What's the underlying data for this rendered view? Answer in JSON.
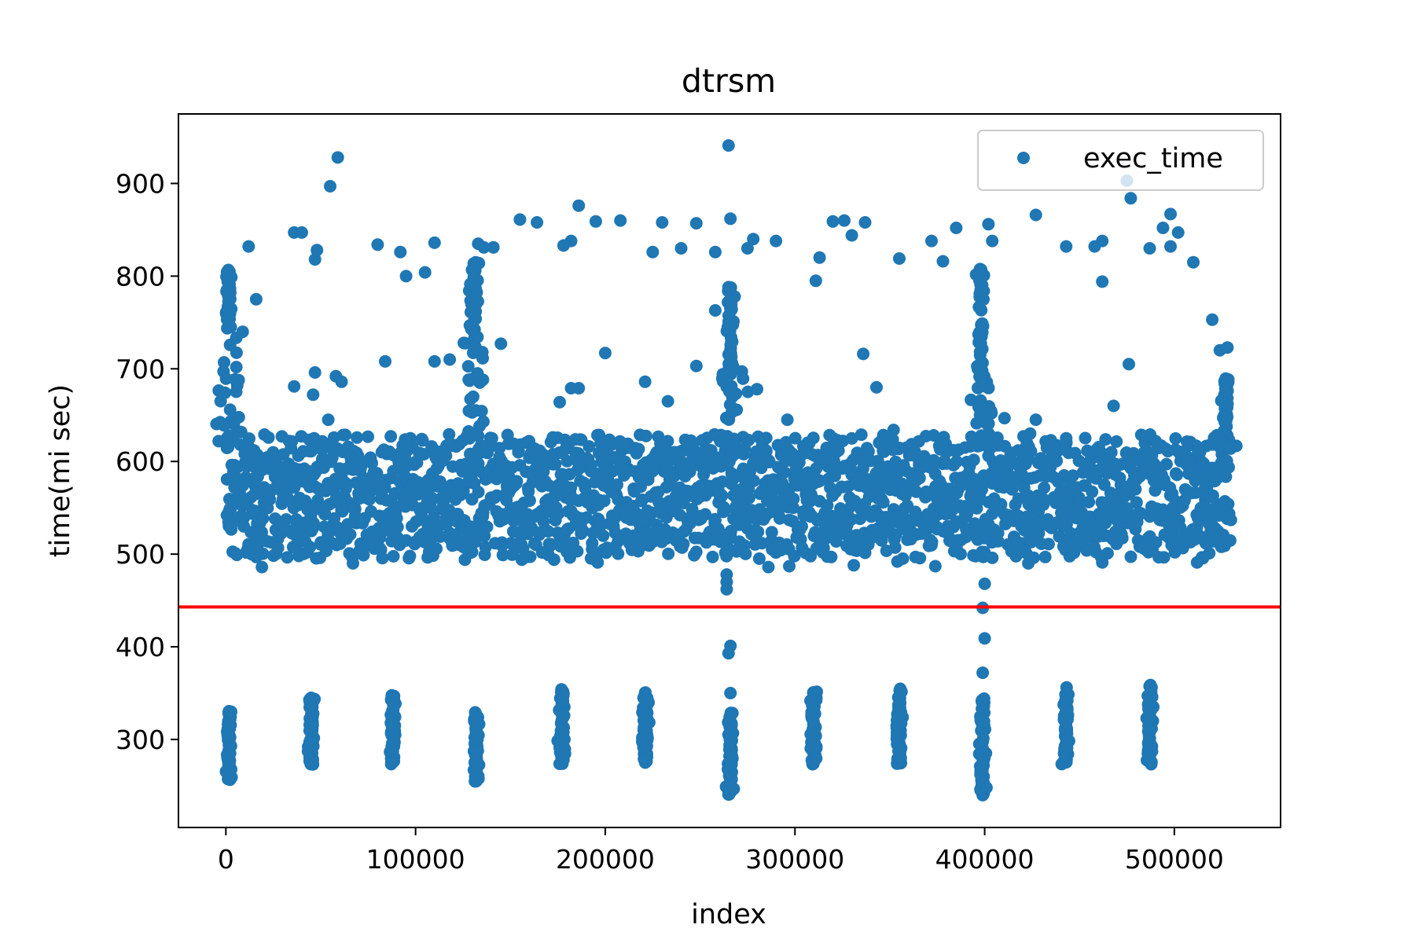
{
  "chart_data": {
    "type": "scatter",
    "title": "dtrsm",
    "xlabel": "index",
    "ylabel": "time(mi sec)",
    "xlim": [
      -25000,
      556000
    ],
    "ylim": [
      205,
      975
    ],
    "xticks": [
      0,
      100000,
      200000,
      300000,
      400000,
      500000
    ],
    "xtick_labels": [
      "0",
      "100000",
      "200000",
      "300000",
      "400000",
      "500000"
    ],
    "yticks": [
      300,
      400,
      500,
      600,
      700,
      800,
      900
    ],
    "ytick_labels": [
      "300",
      "400",
      "500",
      "600",
      "700",
      "800",
      "900"
    ],
    "grid": false,
    "legend": {
      "position": "top-right",
      "entries": [
        "exec_time"
      ]
    },
    "threshold_line": {
      "y": 443,
      "color": "#ff0000"
    },
    "series": [
      {
        "name": "exec_time",
        "color": "#1f77b4",
        "main_band": {
          "x_range": [
            0,
            530000
          ],
          "y_range": [
            495,
            630
          ],
          "typical_range": [
            510,
            615
          ]
        },
        "low_clusters": [
          {
            "x": 1500,
            "y_range": [
              255,
              332
            ]
          },
          {
            "x": 45000,
            "y_range": [
              273,
              345
            ]
          },
          {
            "x": 88000,
            "y_range": [
              273,
              348
            ]
          },
          {
            "x": 132000,
            "y_range": [
              253,
              330
            ]
          },
          {
            "x": 177000,
            "y_range": [
              273,
              355
            ]
          },
          {
            "x": 221000,
            "y_range": [
              273,
              352
            ]
          },
          {
            "x": 266000,
            "y_range": [
              238,
              330
            ]
          },
          {
            "x": 310000,
            "y_range": [
              273,
              355
            ]
          },
          {
            "x": 355000,
            "y_range": [
              273,
              355
            ]
          },
          {
            "x": 399000,
            "y_range": [
              238,
              345
            ]
          },
          {
            "x": 443000,
            "y_range": [
              273,
              358
            ]
          },
          {
            "x": 487000,
            "y_range": [
              273,
              360
            ]
          }
        ],
        "high_clusters": [
          {
            "x": 1500,
            "y_range": [
              740,
              808
            ]
          },
          {
            "x": 131000,
            "y_range": [
              730,
              815
            ]
          },
          {
            "x": 266000,
            "y_range": [
              700,
              790
            ]
          },
          {
            "x": 398000,
            "y_range": [
              690,
              810
            ]
          },
          {
            "x": 527000,
            "y_range": [
              620,
              690
            ]
          }
        ],
        "highlight_points": [
          [
            265000,
            941
          ],
          [
            59000,
            928
          ],
          [
            55000,
            897
          ],
          [
            475000,
            903
          ],
          [
            477000,
            884
          ],
          [
            186000,
            876
          ],
          [
            427000,
            866
          ],
          [
            498000,
            867
          ],
          [
            155000,
            861
          ],
          [
            164000,
            858
          ],
          [
            195000,
            859
          ],
          [
            208000,
            860
          ],
          [
            230000,
            858
          ],
          [
            248000,
            857
          ],
          [
            266000,
            862
          ],
          [
            320000,
            859
          ],
          [
            326000,
            860
          ],
          [
            337000,
            858
          ],
          [
            385000,
            852
          ],
          [
            402000,
            856
          ],
          [
            494000,
            852
          ],
          [
            502000,
            847
          ],
          [
            36000,
            847
          ],
          [
            40000,
            847
          ],
          [
            12000,
            832
          ],
          [
            80000,
            834
          ],
          [
            92000,
            826
          ],
          [
            110000,
            836
          ],
          [
            133000,
            835
          ],
          [
            136000,
            831
          ],
          [
            141000,
            831
          ],
          [
            178000,
            833
          ],
          [
            182000,
            838
          ],
          [
            225000,
            826
          ],
          [
            240000,
            830
          ],
          [
            258000,
            826
          ],
          [
            275000,
            830
          ],
          [
            278000,
            840
          ],
          [
            290000,
            838
          ],
          [
            330000,
            844
          ],
          [
            372000,
            838
          ],
          [
            404000,
            838
          ],
          [
            443000,
            832
          ],
          [
            458000,
            832
          ],
          [
            462000,
            838
          ],
          [
            487000,
            830
          ],
          [
            498000,
            832
          ],
          [
            47000,
            818
          ],
          [
            48000,
            828
          ],
          [
            95000,
            800
          ],
          [
            105000,
            804
          ],
          [
            313000,
            820
          ],
          [
            355000,
            819
          ],
          [
            378000,
            816
          ],
          [
            462000,
            794
          ],
          [
            510000,
            815
          ],
          [
            311000,
            795
          ],
          [
            16000,
            775
          ],
          [
            200000,
            717
          ],
          [
            336000,
            716
          ],
          [
            476000,
            705
          ],
          [
            520000,
            753
          ],
          [
            524000,
            720
          ],
          [
            528000,
            723
          ],
          [
            258000,
            763
          ],
          [
            248000,
            703
          ],
          [
            272000,
            697
          ],
          [
            145000,
            727
          ],
          [
            118000,
            710
          ],
          [
            58000,
            692
          ],
          [
            84000,
            708
          ],
          [
            110000,
            708
          ],
          [
            61000,
            686
          ],
          [
            47000,
            696
          ],
          [
            6000,
            682
          ],
          [
            36000,
            681
          ],
          [
            46000,
            672
          ],
          [
            54000,
            645
          ],
          [
            176000,
            664
          ],
          [
            182000,
            679
          ],
          [
            186000,
            679
          ],
          [
            221000,
            686
          ],
          [
            233000,
            665
          ],
          [
            280000,
            678
          ],
          [
            343000,
            680
          ],
          [
            296000,
            645
          ],
          [
            352000,
            634
          ],
          [
            427000,
            645
          ],
          [
            443000,
            625
          ],
          [
            468000,
            660
          ],
          [
            264000,
            470
          ],
          [
            264000,
            462
          ],
          [
            400000,
            468
          ],
          [
            399000,
            442
          ],
          [
            400000,
            409
          ],
          [
            399000,
            372
          ],
          [
            266000,
            401
          ],
          [
            265000,
            393
          ],
          [
            266000,
            350
          ],
          [
            19000,
            486
          ],
          [
            67000,
            490
          ],
          [
            97000,
            498
          ],
          [
            126000,
            494
          ],
          [
            156000,
            494
          ],
          [
            173000,
            494
          ],
          [
            196000,
            491
          ],
          [
            264000,
            478
          ],
          [
            286000,
            486
          ],
          [
            297000,
            487
          ],
          [
            331000,
            488
          ],
          [
            354000,
            492
          ],
          [
            374000,
            487
          ],
          [
            423000,
            490
          ],
          [
            462000,
            491
          ],
          [
            512000,
            491
          ]
        ]
      }
    ]
  }
}
